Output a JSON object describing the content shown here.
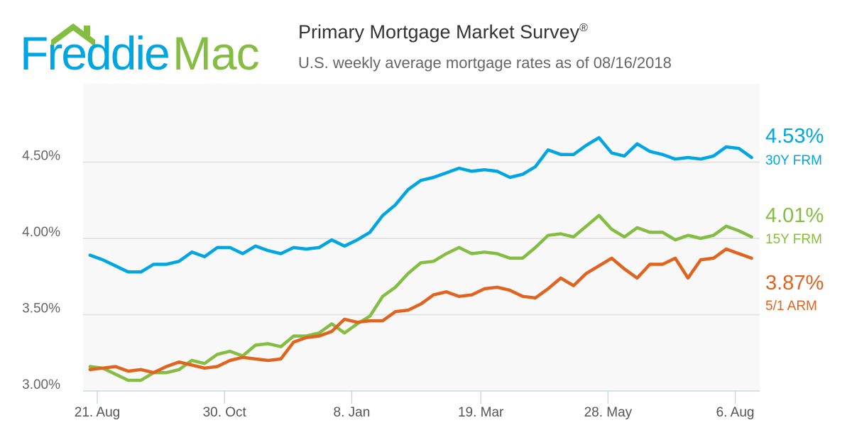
{
  "logo": {
    "part1": "Freddie",
    "part2": "Mac"
  },
  "header": {
    "title": "Primary Mortgage Market Survey",
    "title_mark": "®",
    "subtitle": "U.S. weekly average mortgage rates as of 08/16/2018"
  },
  "chart_data": {
    "type": "line",
    "title": "Primary Mortgage Market Survey",
    "subtitle": "U.S. weekly average mortgage rates as of 08/16/2018",
    "xlabel": "",
    "ylabel": "",
    "ylim": [
      3.0,
      5.0
    ],
    "grid": true,
    "y_ticks": [
      {
        "value": 3.0,
        "label": "3.00%"
      },
      {
        "value": 3.5,
        "label": "3.50%"
      },
      {
        "value": 4.0,
        "label": "4.00%"
      },
      {
        "value": 4.5,
        "label": "4.50%"
      }
    ],
    "x_ticks": [
      {
        "week_offset": 0.571,
        "label": "21. Aug"
      },
      {
        "week_offset": 10.571,
        "label": "30. Oct"
      },
      {
        "week_offset": 20.571,
        "label": "8. Jan"
      },
      {
        "week_offset": 30.714,
        "label": "19. Mar"
      },
      {
        "week_offset": 40.714,
        "label": "28. May"
      },
      {
        "week_offset": 50.714,
        "label": "6. Aug"
      }
    ],
    "x_start": "2017-08-17",
    "x_step": "weekly",
    "series": [
      {
        "name": "30Y FRM",
        "latest_label": "4.53%",
        "color": "#00a6e2",
        "values": [
          3.89,
          3.86,
          3.82,
          3.78,
          3.78,
          3.83,
          3.83,
          3.85,
          3.91,
          3.88,
          3.94,
          3.94,
          3.9,
          3.95,
          3.92,
          3.9,
          3.94,
          3.93,
          3.94,
          3.99,
          3.95,
          3.99,
          4.04,
          4.15,
          4.22,
          4.32,
          4.38,
          4.4,
          4.43,
          4.46,
          4.44,
          4.45,
          4.44,
          4.4,
          4.42,
          4.47,
          4.58,
          4.55,
          4.55,
          4.61,
          4.66,
          4.56,
          4.54,
          4.62,
          4.57,
          4.55,
          4.52,
          4.53,
          4.52,
          4.54,
          4.6,
          4.59,
          4.53
        ]
      },
      {
        "name": "15Y FRM",
        "latest_label": "4.01%",
        "color": "#84bd41",
        "values": [
          3.16,
          3.15,
          3.11,
          3.07,
          3.07,
          3.12,
          3.12,
          3.14,
          3.2,
          3.18,
          3.24,
          3.26,
          3.23,
          3.3,
          3.31,
          3.29,
          3.36,
          3.36,
          3.38,
          3.44,
          3.38,
          3.44,
          3.49,
          3.62,
          3.68,
          3.77,
          3.84,
          3.85,
          3.9,
          3.94,
          3.9,
          3.91,
          3.9,
          3.87,
          3.87,
          3.94,
          4.02,
          4.03,
          4.01,
          4.08,
          4.15,
          4.06,
          4.01,
          4.07,
          4.04,
          4.04,
          3.99,
          4.02,
          4.0,
          4.02,
          4.08,
          4.05,
          4.01
        ]
      },
      {
        "name": "5/1 ARM",
        "latest_label": "3.87%",
        "color": "#e0641f",
        "values": [
          3.14,
          3.15,
          3.16,
          3.13,
          3.14,
          3.12,
          3.16,
          3.19,
          3.17,
          3.15,
          3.16,
          3.2,
          3.22,
          3.21,
          3.2,
          3.21,
          3.32,
          3.35,
          3.36,
          3.39,
          3.47,
          3.45,
          3.46,
          3.46,
          3.52,
          3.53,
          3.57,
          3.63,
          3.65,
          3.62,
          3.63,
          3.67,
          3.68,
          3.66,
          3.62,
          3.61,
          3.67,
          3.74,
          3.69,
          3.77,
          3.82,
          3.87,
          3.8,
          3.74,
          3.83,
          3.83,
          3.87,
          3.74,
          3.86,
          3.87,
          3.93,
          3.9,
          3.87
        ]
      }
    ]
  }
}
